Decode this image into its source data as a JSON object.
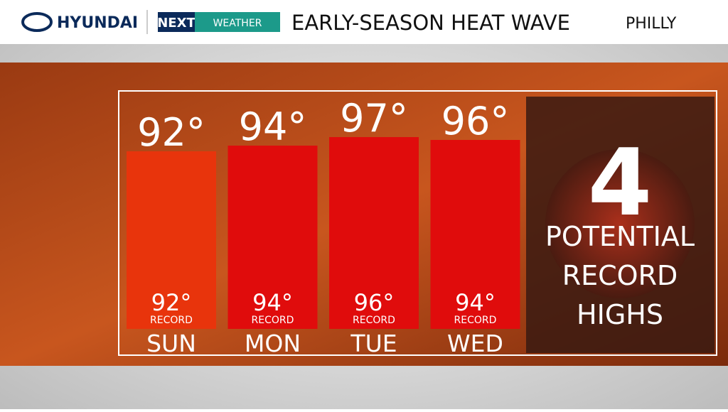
{
  "header": {
    "brand": "HYUNDAI",
    "logo_next": "NEXT",
    "logo_weather": "WEATHER",
    "title": "EARLY-SEASON HEAT WAVE",
    "location": "PHILLY"
  },
  "chart_data": {
    "type": "bar",
    "categories": [
      "SUN",
      "MON",
      "TUE",
      "WED"
    ],
    "values": [
      92,
      94,
      97,
      96
    ],
    "value_labels": [
      "92°",
      "94°",
      "97°",
      "96°"
    ],
    "colors": [
      "#e8340c",
      "#e00c0c",
      "#e00c0c",
      "#e00c0c"
    ],
    "records": {
      "label": "RECORD",
      "values": [
        92,
        94,
        96,
        94
      ],
      "value_labels": [
        "92°",
        "94°",
        "96°",
        "94°"
      ]
    }
  },
  "side": {
    "count": 4,
    "lines": [
      "POTENTIAL",
      "RECORD",
      "HIGHS"
    ]
  }
}
